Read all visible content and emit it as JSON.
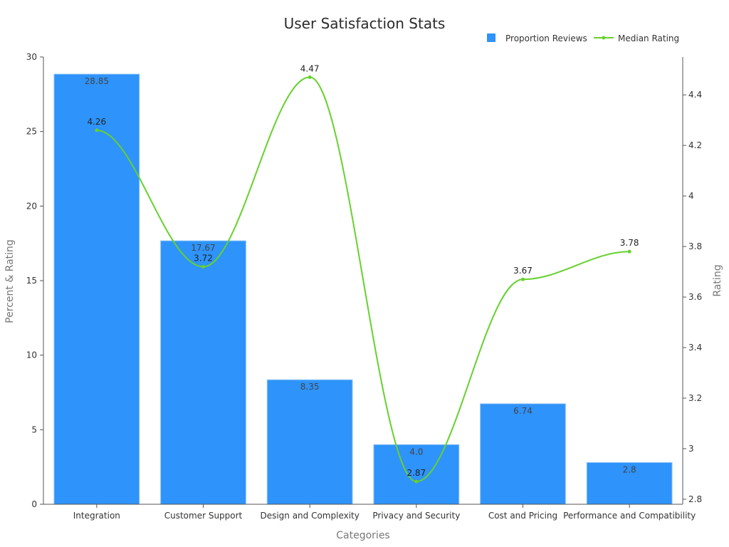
{
  "chart_data": {
    "type": "bar",
    "title": "User Satisfaction Stats",
    "xlabel": "Categories",
    "ylabel": "Percent & Rating",
    "y2label": "Rating",
    "categories": [
      "Integration",
      "Customer Support",
      "Design and Complexity",
      "Privacy and Security",
      "Cost and Pricing",
      "Performance and Compatibility"
    ],
    "ylim": [
      0,
      30
    ],
    "y2lim": [
      2.78,
      4.55
    ],
    "yticks": [
      0,
      5,
      10,
      15,
      20,
      25,
      30
    ],
    "y2ticks": [
      2.8,
      3,
      3.2,
      3.4,
      3.6,
      3.8,
      4,
      4.2,
      4.4
    ],
    "y2tick_labels": [
      "2.8",
      "3",
      "3.2",
      "3.4",
      "3.6",
      "3.8",
      "4",
      "4.2",
      "4.4"
    ],
    "legend_position": "top-right",
    "grid": false,
    "series": [
      {
        "name": "Proportion Reviews",
        "kind": "bar",
        "axis": "left",
        "color": "#2e93fa",
        "values": [
          28.85,
          17.67,
          8.35,
          4.0,
          6.74,
          2.8
        ],
        "labels": [
          "28.85",
          "17.67",
          "8.35",
          "4.0",
          "6.74",
          "2.8"
        ]
      },
      {
        "name": "Median Rating",
        "kind": "line",
        "axis": "right",
        "color": "#66d12e",
        "values": [
          4.26,
          3.72,
          4.47,
          2.87,
          3.67,
          3.78
        ],
        "labels": [
          "4.26",
          "3.72",
          "4.47",
          "2.87",
          "3.67",
          "3.78"
        ]
      }
    ]
  }
}
